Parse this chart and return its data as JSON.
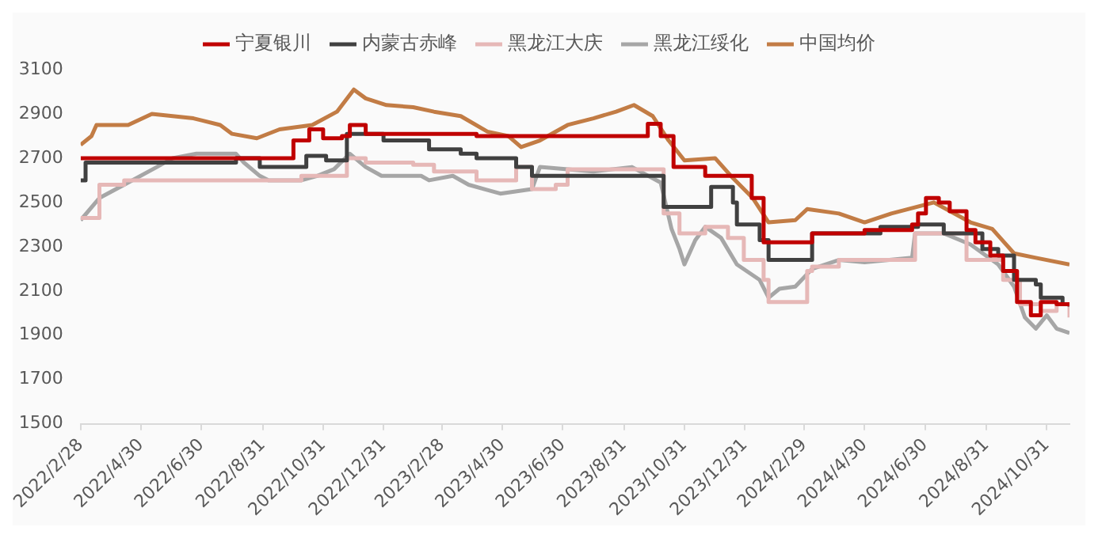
{
  "chart_data": {
    "type": "line",
    "legend": "top",
    "ylim": [
      1500,
      3100
    ],
    "yticks": [
      1500,
      1700,
      1900,
      2100,
      2300,
      2500,
      2700,
      2900,
      3100
    ],
    "xlim": [
      "2022-02-28",
      "2024-11-23"
    ],
    "xticks": [
      {
        "value": "2022-02-28",
        "label": "2022/2/28"
      },
      {
        "value": "2022-04-30",
        "label": "2022/4/30"
      },
      {
        "value": "2022-06-30",
        "label": "2022/6/30"
      },
      {
        "value": "2022-08-31",
        "label": "2022/8/31"
      },
      {
        "value": "2022-10-31",
        "label": "2022/10/31"
      },
      {
        "value": "2022-12-31",
        "label": "2022/12/31"
      },
      {
        "value": "2023-02-28",
        "label": "2023/2/28"
      },
      {
        "value": "2023-04-30",
        "label": "2023/4/30"
      },
      {
        "value": "2023-06-30",
        "label": "2023/6/30"
      },
      {
        "value": "2023-08-31",
        "label": "2023/8/31"
      },
      {
        "value": "2023-10-31",
        "label": "2023/10/31"
      },
      {
        "value": "2023-12-31",
        "label": "2023/12/31"
      },
      {
        "value": "2024-02-29",
        "label": "2024/2/29"
      },
      {
        "value": "2024-04-30",
        "label": "2024/4/30"
      },
      {
        "value": "2024-06-30",
        "label": "2024/6/30"
      },
      {
        "value": "2024-08-31",
        "label": "2024/8/31"
      },
      {
        "value": "2024-10-31",
        "label": "2024/10/31"
      }
    ],
    "series": [
      {
        "name": "宁夏银川",
        "color": "#c00000",
        "type": "step",
        "x": [
          "2022-02-28",
          "2022-10-01",
          "2022-10-17",
          "2022-10-31",
          "2022-11-19",
          "2022-11-27",
          "2022-12-13",
          "2023-04-04",
          "2023-09-24",
          "2023-10-07",
          "2023-10-20",
          "2023-11-21",
          "2024-01-07",
          "2024-01-19",
          "2024-03-08",
          "2024-04-30",
          "2024-06-17",
          "2024-06-23",
          "2024-07-01",
          "2024-07-14",
          "2024-07-25",
          "2024-08-11",
          "2024-08-20",
          "2024-09-04",
          "2024-09-17",
          "2024-10-01",
          "2024-10-15",
          "2024-10-25",
          "2024-11-10",
          "2024-11-23"
        ],
        "values": [
          2700,
          2780,
          2830,
          2790,
          2800,
          2850,
          2810,
          2800,
          2855,
          2800,
          2660,
          2620,
          2520,
          2320,
          2360,
          2375,
          2400,
          2450,
          2520,
          2500,
          2460,
          2375,
          2320,
          2260,
          2190,
          2050,
          1990,
          2050,
          2040,
          2040
        ]
      },
      {
        "name": "内蒙古赤峰",
        "color": "#404040",
        "type": "step",
        "x": [
          "2022-02-28",
          "2022-03-05",
          "2022-08-04",
          "2022-08-28",
          "2022-10-14",
          "2022-11-03",
          "2022-11-24",
          "2022-12-31",
          "2023-02-15",
          "2023-03-19",
          "2023-04-04",
          "2023-05-14",
          "2023-05-30",
          "2023-10-10",
          "2023-11-27",
          "2023-12-19",
          "2023-12-23",
          "2024-01-15",
          "2024-01-24",
          "2024-03-08",
          "2024-05-16",
          "2024-06-23",
          "2024-07-19",
          "2024-08-27",
          "2024-09-12",
          "2024-09-28",
          "2024-10-20",
          "2024-10-25",
          "2024-11-16",
          "2024-11-23"
        ],
        "values": [
          2600,
          2680,
          2700,
          2660,
          2710,
          2690,
          2810,
          2780,
          2740,
          2720,
          2700,
          2660,
          2620,
          2480,
          2570,
          2500,
          2400,
          2330,
          2240,
          2360,
          2390,
          2400,
          2360,
          2290,
          2260,
          2150,
          2130,
          2070,
          2040,
          2030
        ]
      },
      {
        "name": "黑龙江大庆",
        "color": "#e6b8b7",
        "type": "step",
        "x": [
          "2022-02-28",
          "2022-03-19",
          "2022-04-13",
          "2022-10-09",
          "2022-11-24",
          "2022-12-13",
          "2023-01-30",
          "2023-02-20",
          "2023-04-04",
          "2023-05-14",
          "2023-05-30",
          "2023-06-23",
          "2023-07-05",
          "2023-10-10",
          "2023-10-26",
          "2023-11-21",
          "2023-12-14",
          "2023-12-30",
          "2024-01-19",
          "2024-01-24",
          "2024-03-03",
          "2024-03-08",
          "2024-04-04",
          "2024-06-20",
          "2024-08-11",
          "2024-09-17",
          "2024-10-04",
          "2024-10-25",
          "2024-11-10",
          "2024-11-23"
        ],
        "values": [
          2430,
          2580,
          2600,
          2620,
          2700,
          2680,
          2670,
          2640,
          2600,
          2660,
          2560,
          2580,
          2650,
          2450,
          2360,
          2390,
          2340,
          2240,
          2150,
          2050,
          2190,
          2210,
          2240,
          2360,
          2240,
          2150,
          2040,
          2010,
          2040,
          1980
        ]
      },
      {
        "name": "黑龙江绥化",
        "color": "#a6a6a6",
        "type": "line",
        "x": [
          "2022-02-28",
          "2022-03-19",
          "2022-04-13",
          "2022-05-16",
          "2022-06-01",
          "2022-06-25",
          "2022-08-04",
          "2022-08-12",
          "2022-08-28",
          "2022-09-06",
          "2022-10-09",
          "2022-10-25",
          "2022-11-11",
          "2022-11-27",
          "2022-12-13",
          "2022-12-29",
          "2023-02-07",
          "2023-02-15",
          "2023-03-11",
          "2023-03-27",
          "2023-04-12",
          "2023-04-28",
          "2023-05-30",
          "2023-06-07",
          "2023-07-31",
          "2023-09-08",
          "2023-10-07",
          "2023-10-18",
          "2023-10-26",
          "2023-10-31",
          "2023-11-11",
          "2023-11-21",
          "2023-12-07",
          "2023-12-23",
          "2024-01-15",
          "2024-01-24",
          "2024-02-04",
          "2024-02-20",
          "2024-03-08",
          "2024-04-04",
          "2024-04-30",
          "2024-06-17",
          "2024-06-20",
          "2024-07-19",
          "2024-08-15",
          "2024-09-12",
          "2024-09-28",
          "2024-10-09",
          "2024-10-20",
          "2024-10-31",
          "2024-11-10",
          "2024-11-23"
        ],
        "values": [
          2420,
          2520,
          2580,
          2660,
          2700,
          2720,
          2720,
          2680,
          2620,
          2600,
          2600,
          2620,
          2650,
          2720,
          2660,
          2620,
          2620,
          2600,
          2620,
          2580,
          2560,
          2540,
          2560,
          2660,
          2640,
          2660,
          2590,
          2380,
          2290,
          2220,
          2330,
          2390,
          2340,
          2220,
          2150,
          2070,
          2110,
          2120,
          2200,
          2240,
          2230,
          2250,
          2360,
          2360,
          2310,
          2220,
          2120,
          1980,
          1930,
          1990,
          1930,
          1910
        ]
      },
      {
        "name": "中国均价",
        "color": "#c27c45",
        "type": "line",
        "x": [
          "2022-02-28",
          "2022-03-11",
          "2022-03-16",
          "2022-04-17",
          "2022-05-11",
          "2022-06-22",
          "2022-07-19",
          "2022-07-31",
          "2022-08-25",
          "2022-09-17",
          "2022-10-20",
          "2022-11-14",
          "2022-12-01",
          "2022-12-13",
          "2023-01-03",
          "2023-01-30",
          "2023-02-20",
          "2023-03-19",
          "2023-04-15",
          "2023-05-06",
          "2023-05-19",
          "2023-06-07",
          "2023-07-05",
          "2023-07-31",
          "2023-08-23",
          "2023-09-10",
          "2023-09-29",
          "2023-10-15",
          "2023-10-31",
          "2023-12-01",
          "2023-12-19",
          "2024-01-08",
          "2024-01-24",
          "2024-02-20",
          "2024-03-03",
          "2024-04-04",
          "2024-04-30",
          "2024-05-27",
          "2024-07-09",
          "2024-08-15",
          "2024-09-06",
          "2024-09-28",
          "2024-10-20",
          "2024-11-23"
        ],
        "values": [
          2760,
          2800,
          2850,
          2850,
          2900,
          2880,
          2850,
          2810,
          2790,
          2830,
          2850,
          2910,
          3010,
          2970,
          2940,
          2930,
          2910,
          2890,
          2820,
          2800,
          2750,
          2780,
          2850,
          2880,
          2910,
          2940,
          2890,
          2780,
          2690,
          2700,
          2610,
          2520,
          2410,
          2420,
          2470,
          2450,
          2410,
          2450,
          2500,
          2410,
          2380,
          2270,
          2250,
          2220
        ]
      }
    ]
  }
}
